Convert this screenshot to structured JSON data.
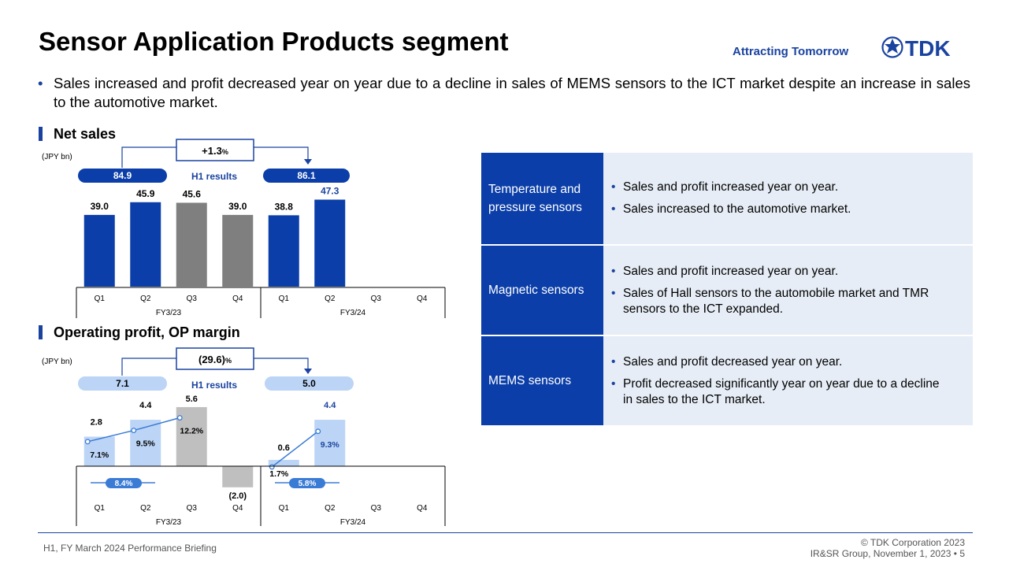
{
  "header": {
    "title": "Sensor Application Products segment",
    "tagline": "Attracting Tomorrow",
    "logo_text": "TDK"
  },
  "bullet": "Sales increased and profit decreased year on year due to a decline in sales of MEMS sensors to the ICT market despite an increase in sales to the automotive market.",
  "chart_data": [
    {
      "type": "bar",
      "title": "Net sales",
      "ylabel": "(JPY bn)",
      "categories": [
        "Q1",
        "Q2",
        "Q3",
        "Q4",
        "Q1",
        "Q2",
        "Q3",
        "Q4"
      ],
      "groups": [
        "FY3/23",
        "FY3/24"
      ],
      "values": [
        39.0,
        45.9,
        45.6,
        39.0,
        38.8,
        47.3,
        null,
        null
      ],
      "value_labels": [
        "39.0",
        "45.9",
        "45.6",
        "39.0",
        "38.8",
        "47.3",
        "",
        ""
      ],
      "colors": [
        "#0b3ea8",
        "#0b3ea8",
        "#7f7f7f",
        "#7f7f7f",
        "#0b3ea8",
        "#0b3ea8",
        "",
        ""
      ],
      "h1_label": "H1 results",
      "h1_values": [
        "84.9",
        "86.1"
      ],
      "change": "+1.3",
      "change_unit": "%",
      "colors_theme": {
        "primary": "#0b3ea8",
        "gray": "#7f7f7f",
        "light": "#bcd4f6"
      }
    },
    {
      "type": "bar",
      "title": "Operating profit, OP margin",
      "ylabel": "(JPY bn)",
      "categories": [
        "Q1",
        "Q2",
        "Q3",
        "Q4",
        "Q1",
        "Q2",
        "Q3",
        "Q4"
      ],
      "groups": [
        "FY3/23",
        "FY3/24"
      ],
      "values": [
        2.8,
        4.4,
        5.6,
        -2.0,
        0.6,
        4.4,
        null,
        null
      ],
      "value_labels": [
        "2.8",
        "4.4",
        "5.6",
        "(2.0)",
        "0.6",
        "4.4",
        "",
        ""
      ],
      "margins": [
        7.1,
        9.5,
        12.2,
        null,
        1.7,
        9.3,
        null,
        null
      ],
      "margin_labels": [
        "7.1%",
        "9.5%",
        "12.2%",
        "",
        "1.7%",
        "9.3%",
        "",
        ""
      ],
      "colors": [
        "#bcd4f6",
        "#bcd4f6",
        "#bfbfbf",
        "#bfbfbf",
        "#bcd4f6",
        "#bcd4f6",
        "",
        ""
      ],
      "h1_label": "H1 results",
      "h1_values": [
        "7.1",
        "5.0"
      ],
      "h1_margins": [
        "8.4%",
        "5.8%"
      ],
      "change": "(29.6)",
      "change_unit": "%"
    }
  ],
  "table": [
    {
      "category": "Temperature and pressure sensors",
      "points": [
        "Sales and profit increased year on year.",
        "Sales increased to the automotive market."
      ]
    },
    {
      "category": "Magnetic sensors",
      "points": [
        "Sales and profit increased year on year.",
        "Sales of Hall sensors to the automobile market and TMR sensors to the ICT expanded."
      ]
    },
    {
      "category": "MEMS sensors",
      "points": [
        "Sales and profit decreased year on year.",
        "Profit decreased significantly year on year due to a decline in sales to the ICT market."
      ]
    }
  ],
  "footer": {
    "left": "H1, FY March 2024 Performance Briefing",
    "right1": "© TDK Corporation 2023",
    "right2": "IR&SR Group, November 1, 2023 • 5"
  }
}
